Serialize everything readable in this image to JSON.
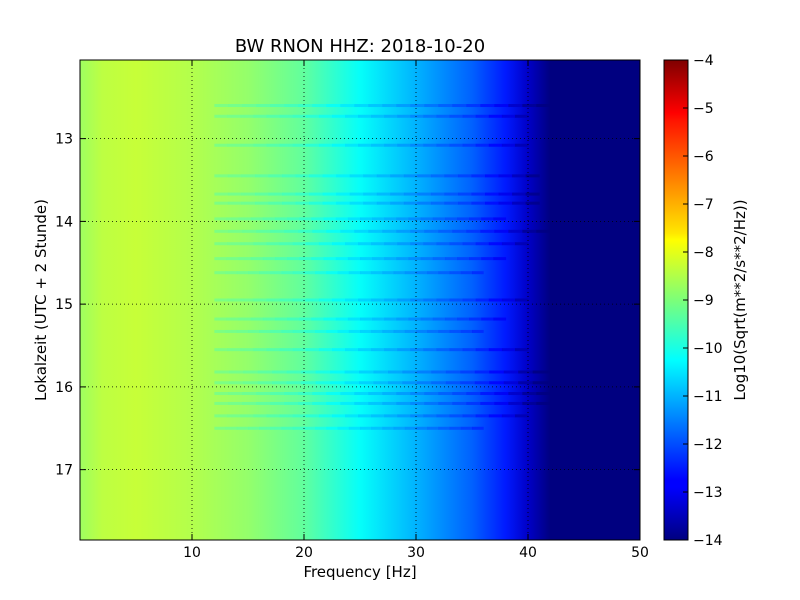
{
  "chart_data": {
    "type": "heatmap",
    "title": "BW RNON HHZ: 2018-10-20",
    "xlabel": "Frequency [Hz]",
    "ylabel": "Lokalzeit (UTC + 2 Stunde)",
    "xlim": [
      0,
      50
    ],
    "ylim": [
      12.05,
      17.85
    ],
    "y_inverted": true,
    "x_ticks": [
      10,
      20,
      30,
      40,
      50
    ],
    "y_ticks": [
      13,
      14,
      15,
      16,
      17
    ],
    "grid": true,
    "colormap": "jet",
    "colorbar": {
      "label": "Log10(Sqrt(m**2/s**2/Hz))",
      "range": [
        -14,
        -4
      ],
      "ticks": [
        -4,
        -5,
        -6,
        -7,
        -8,
        -9,
        -10,
        -11,
        -12,
        -13,
        -14
      ]
    },
    "spectral_profile": [
      {
        "freq": 0,
        "value": -8.7
      },
      {
        "freq": 2,
        "value": -8.4
      },
      {
        "freq": 5,
        "value": -8.3
      },
      {
        "freq": 10,
        "value": -8.5
      },
      {
        "freq": 15,
        "value": -8.8
      },
      {
        "freq": 20,
        "value": -9.3
      },
      {
        "freq": 25,
        "value": -10.2
      },
      {
        "freq": 30,
        "value": -11.0
      },
      {
        "freq": 35,
        "value": -11.8
      },
      {
        "freq": 38,
        "value": -12.5
      },
      {
        "freq": 40,
        "value": -13.3
      },
      {
        "freq": 42,
        "value": -14.0
      },
      {
        "freq": 50,
        "value": -14.0
      }
    ],
    "noise_bands": [
      {
        "time": 12.6,
        "f_end": 42
      },
      {
        "time": 12.73,
        "f_end": 40
      },
      {
        "time": 13.08,
        "f_end": 40
      },
      {
        "time": 13.45,
        "f_end": 41
      },
      {
        "time": 13.67,
        "f_end": 41
      },
      {
        "time": 13.78,
        "f_end": 41
      },
      {
        "time": 13.97,
        "f_end": 38
      },
      {
        "time": 14.12,
        "f_end": 42
      },
      {
        "time": 14.27,
        "f_end": 40
      },
      {
        "time": 14.45,
        "f_end": 38
      },
      {
        "time": 14.62,
        "f_end": 36
      },
      {
        "time": 14.95,
        "f_end": 40
      },
      {
        "time": 15.18,
        "f_end": 38
      },
      {
        "time": 15.33,
        "f_end": 36
      },
      {
        "time": 15.55,
        "f_end": 40
      },
      {
        "time": 15.82,
        "f_end": 43
      },
      {
        "time": 15.95,
        "f_end": 43
      },
      {
        "time": 16.08,
        "f_end": 42
      },
      {
        "time": 16.2,
        "f_end": 42
      },
      {
        "time": 16.35,
        "f_end": 40
      },
      {
        "time": 16.5,
        "f_end": 36
      }
    ]
  }
}
